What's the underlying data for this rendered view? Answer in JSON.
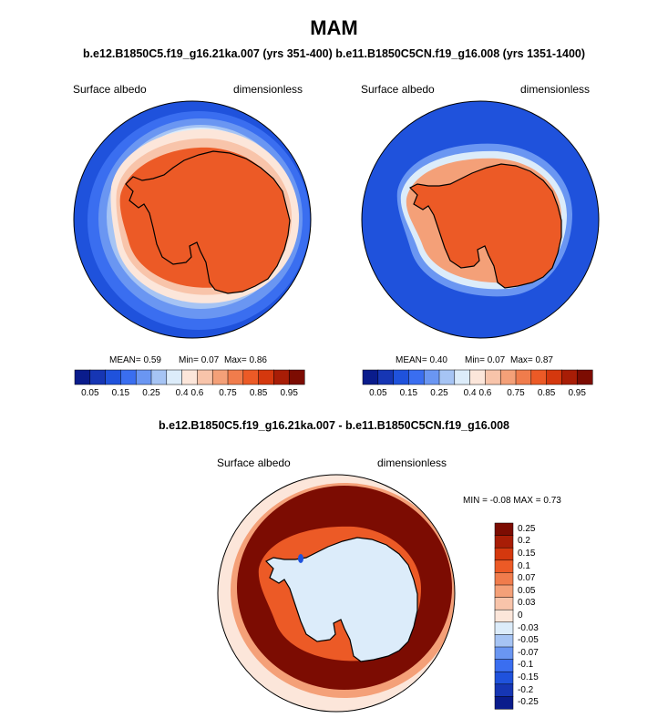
{
  "title": "MAM",
  "runs_title": "b.e12.B1850C5.f19_g16.21ka.007 (yrs 351-400) b.e11.B1850C5CN.f19_g16.008 (yrs 1351-1400)",
  "diff_title": "b.e12.B1850C5.f19_g16.21ka.007 - b.e11.B1850C5CN.f19_g16.008",
  "colors": {
    "abs_scale": [
      "#0a1c8c",
      "#1636b4",
      "#1f52dc",
      "#3a6ef0",
      "#6a96f2",
      "#a6c4f4",
      "#dcecfa",
      "#fce6da",
      "#f8c4aa",
      "#f4a078",
      "#f07c4c",
      "#ec5a26",
      "#d4380e",
      "#a81d06",
      "#7c0c02"
    ],
    "diff_scale": [
      "#0a1c8c",
      "#1636b4",
      "#1f52dc",
      "#3a6ef0",
      "#6a96f2",
      "#a6c4f4",
      "#dcecfa",
      "#fce6da",
      "#f8c4aa",
      "#f4a078",
      "#f07c4c",
      "#ec5a26",
      "#d4380e",
      "#a81d06",
      "#7c0c02"
    ],
    "coastline": "#000000"
  },
  "chart_data": [
    {
      "type": "heatmap",
      "projection": "south-polar stereographic",
      "left_label": "Surface albedo",
      "right_label": "dimensionless",
      "stats": {
        "mean": "MEAN=  0.59",
        "min": "Min=  0.07",
        "max": "Max=  0.86"
      },
      "colorbar_ticks": [
        "0.05",
        "0.15",
        "0.25",
        "0.4",
        "0.6",
        "0.75",
        "0.85",
        "0.95"
      ],
      "colorbar_levels": [
        0.05,
        0.1,
        0.15,
        0.2,
        0.25,
        0.3,
        0.4,
        0.5,
        0.6,
        0.7,
        0.75,
        0.8,
        0.85,
        0.9,
        0.95
      ],
      "mean": 0.59,
      "min": 0.07,
      "max": 0.86
    },
    {
      "type": "heatmap",
      "projection": "south-polar stereographic",
      "left_label": "Surface albedo",
      "right_label": "dimensionless",
      "stats": {
        "mean": "MEAN=  0.40",
        "min": "Min=  0.07",
        "max": "Max=  0.87"
      },
      "colorbar_ticks": [
        "0.05",
        "0.15",
        "0.25",
        "0.4",
        "0.6",
        "0.75",
        "0.85",
        "0.95"
      ],
      "colorbar_levels": [
        0.05,
        0.1,
        0.15,
        0.2,
        0.25,
        0.3,
        0.4,
        0.5,
        0.6,
        0.7,
        0.75,
        0.8,
        0.85,
        0.9,
        0.95
      ],
      "mean": 0.4,
      "min": 0.07,
      "max": 0.87
    },
    {
      "type": "heatmap",
      "projection": "south-polar stereographic",
      "left_label": "Surface albedo",
      "right_label": "dimensionless",
      "minmax_text": "MIN =  -0.08 MAX =   0.73",
      "colorbar_ticks": [
        "0.25",
        "0.2",
        "0.15",
        "0.1",
        "0.07",
        "0.05",
        "0.03",
        "0",
        "-0.03",
        "-0.05",
        "-0.07",
        "-0.1",
        "-0.15",
        "-0.2",
        "-0.25"
      ],
      "min": -0.08,
      "max": 0.73
    }
  ]
}
